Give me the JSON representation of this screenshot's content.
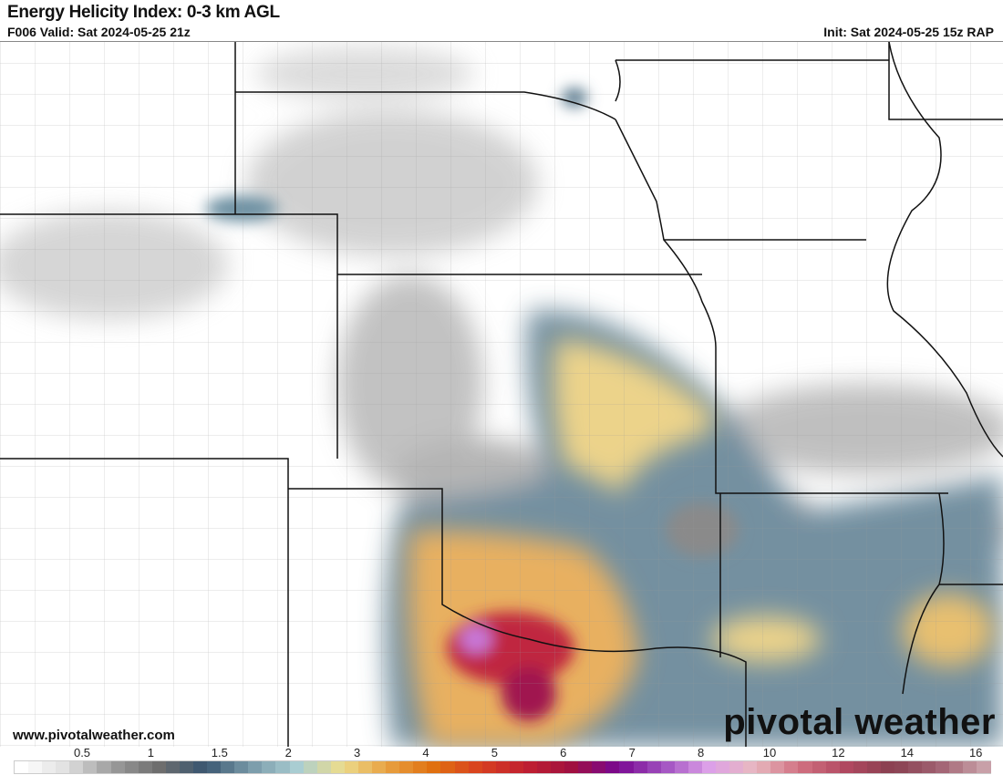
{
  "header": {
    "title": "Energy Helicity Index: 0-3 km AGL",
    "valid": "F006 Valid: Sat 2024-05-25 21z",
    "init": "Init: Sat 2024-05-25 15z RAP"
  },
  "watermark": {
    "url": "www.pivotalweather.com",
    "logo": "pivotal weather"
  },
  "colorbar": {
    "ticks": [
      "0.5",
      "1",
      "1.5",
      "2",
      "3",
      "4",
      "5",
      "6",
      "7",
      "8",
      "10",
      "12",
      "14",
      "16"
    ],
    "stops": [
      "#ffffff",
      "#e0e0e0",
      "#9a9a9a",
      "#6e6e6e",
      "#3a5670",
      "#7899a8",
      "#a9cdd2",
      "#ecdc8c",
      "#e8a040",
      "#e07010",
      "#d84020",
      "#c02030",
      "#a01040",
      "#780890",
      "#a050c0",
      "#dca0e8",
      "#e8b8c0",
      "#d07080",
      "#b04860",
      "#884050",
      "#a06070",
      "#c8a0a8"
    ]
  },
  "map": {
    "field_colors": {
      "gray": "#8c8c8c",
      "blue": "#4d7085",
      "yellow": "#ecd38a",
      "orange": "#e69238",
      "magenta": "#b0205a",
      "purple": "#c070d8"
    }
  }
}
